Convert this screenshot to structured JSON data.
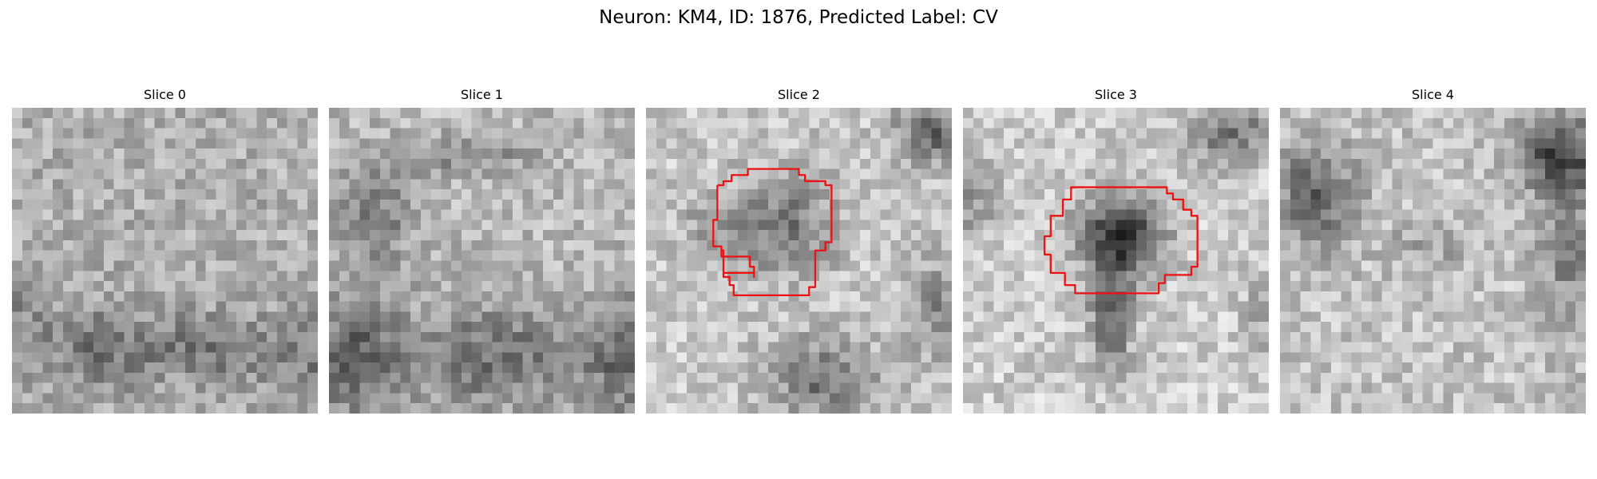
{
  "figure": {
    "title": "Neuron: KM4, ID: 1876, Predicted Label: CV",
    "overlay_color": "#ee1111",
    "slices": [
      {
        "title": "Slice 0",
        "has_contour": false
      },
      {
        "title": "Slice 1",
        "has_contour": false
      },
      {
        "title": "Slice 2",
        "has_contour": true
      },
      {
        "title": "Slice 3",
        "has_contour": true
      },
      {
        "title": "Slice 4",
        "has_contour": false
      }
    ]
  }
}
